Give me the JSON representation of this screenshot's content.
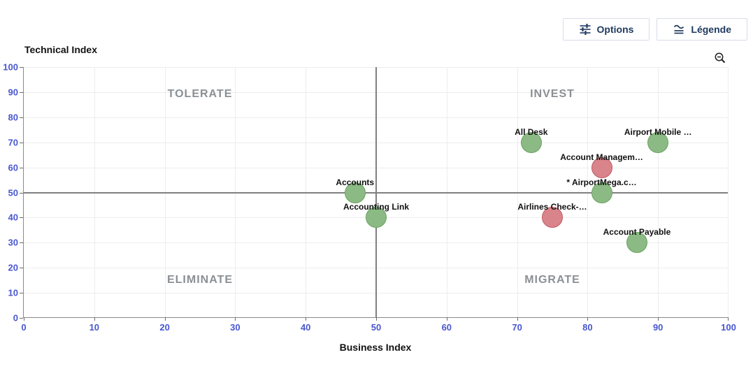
{
  "toolbar": {
    "options_label": "Options",
    "legende_label": "Légende"
  },
  "chart_data": {
    "type": "scatter",
    "xlabel": "Business Index",
    "ylabel": "Technical Index",
    "xlim": [
      0,
      100
    ],
    "ylim": [
      0,
      100
    ],
    "x_ticks": [
      0,
      10,
      20,
      30,
      40,
      50,
      60,
      70,
      80,
      90,
      100
    ],
    "y_ticks": [
      0,
      10,
      20,
      30,
      40,
      50,
      60,
      70,
      80,
      90,
      100
    ],
    "grid": true,
    "quadrant_lines": {
      "x": 50,
      "y": 50
    },
    "quadrants": [
      {
        "label": "TOLERATE",
        "x": 25,
        "y": 89
      },
      {
        "label": "INVEST",
        "x": 75,
        "y": 89
      },
      {
        "label": "ELIMINATE",
        "x": 25,
        "y": 15
      },
      {
        "label": "MIGRATE",
        "x": 75,
        "y": 15
      }
    ],
    "points": [
      {
        "label": "All Desk",
        "x": 72,
        "y": 70,
        "color": "green"
      },
      {
        "label": "Airport Mobile …",
        "x": 90,
        "y": 70,
        "color": "green"
      },
      {
        "label": "Account Managem…",
        "x": 82,
        "y": 60,
        "color": "red"
      },
      {
        "label": "* AirportMega.c…",
        "x": 82,
        "y": 50,
        "color": "green"
      },
      {
        "label": "Accounts",
        "x": 47,
        "y": 50,
        "color": "green"
      },
      {
        "label": "Accounting Link",
        "x": 50,
        "y": 40,
        "color": "green"
      },
      {
        "label": "Airlines Check-…",
        "x": 75,
        "y": 40,
        "color": "red"
      },
      {
        "label": "Account Payable",
        "x": 87,
        "y": 30,
        "color": "green"
      }
    ]
  },
  "icons": {
    "options_icon": "sliders-icon",
    "legende_icon": "legend-lines-icon",
    "zoom_icon": "zoom-out-magnifier-icon"
  },
  "colors": {
    "tick": "#4857cf",
    "grid": "#ededed",
    "axis": "#8a8a8a",
    "divider": "#808080",
    "quadrant": "#8b9096",
    "point_label": "#111111",
    "green_fill": "#8cba84",
    "green_border": "#68a35f",
    "red_fill": "#d9848b",
    "red_border": "#c25a62",
    "button_text": "#1f3a60",
    "button_border": "#d9dcea"
  }
}
